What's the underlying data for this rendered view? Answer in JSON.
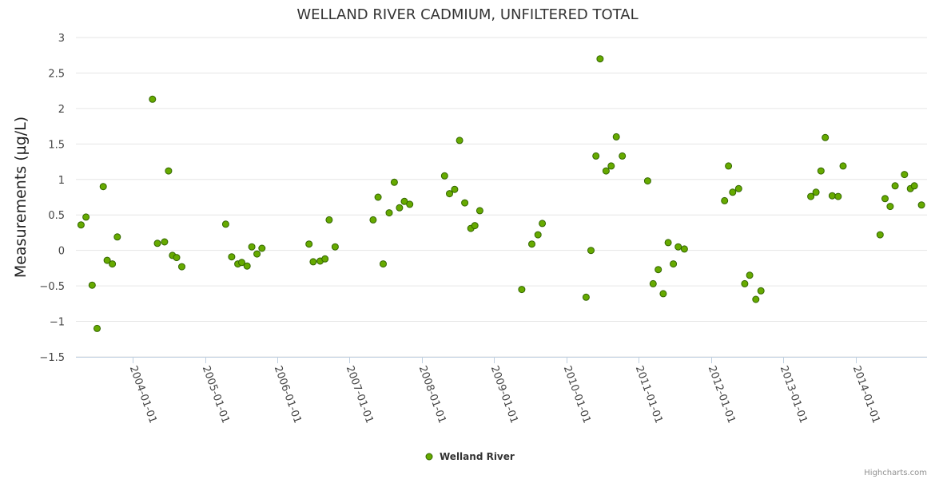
{
  "chart_data": {
    "type": "scatter",
    "title": "WELLAND RIVER CADMIUM, UNFILTERED TOTAL",
    "ylabel": "Measurements (µg/L)",
    "xlabel": "",
    "ylim": [
      -1.5,
      3
    ],
    "yticks": [
      3,
      2.5,
      2,
      1.5,
      1,
      0.5,
      0,
      -0.5,
      -1,
      -1.5
    ],
    "ytick_labels": [
      "3",
      "2.5",
      "2",
      "1.5",
      "1",
      "0.5",
      "0",
      "−0.5",
      "−1",
      "−1.5"
    ],
    "xlim": [
      "2003-03-20",
      "2014-12-28"
    ],
    "xticks": [
      "2004-01-01",
      "2005-01-01",
      "2006-01-01",
      "2007-01-01",
      "2008-01-01",
      "2009-01-01",
      "2010-01-01",
      "2011-01-01",
      "2012-01-01",
      "2013-01-01",
      "2014-01-01"
    ],
    "grid": true,
    "legend_position": "bottom-center",
    "series": [
      {
        "name": "Welland River",
        "color": "#66aa00",
        "points": [
          [
            "2003-04-15",
            0.36
          ],
          [
            "2003-05-10",
            0.47
          ],
          [
            "2003-06-10",
            -0.49
          ],
          [
            "2003-07-05",
            -1.1
          ],
          [
            "2003-08-05",
            0.9
          ],
          [
            "2003-08-25",
            -0.14
          ],
          [
            "2003-09-20",
            -0.19
          ],
          [
            "2003-10-15",
            0.19
          ],
          [
            "2004-04-10",
            2.13
          ],
          [
            "2004-05-05",
            0.1
          ],
          [
            "2004-06-10",
            0.12
          ],
          [
            "2004-06-30",
            1.12
          ],
          [
            "2004-07-20",
            -0.07
          ],
          [
            "2004-08-10",
            -0.1
          ],
          [
            "2004-09-05",
            -0.23
          ],
          [
            "2005-04-15",
            0.37
          ],
          [
            "2005-05-15",
            -0.09
          ],
          [
            "2005-06-15",
            -0.19
          ],
          [
            "2005-07-05",
            -0.17
          ],
          [
            "2005-08-01",
            -0.22
          ],
          [
            "2005-08-25",
            0.05
          ],
          [
            "2005-09-20",
            -0.05
          ],
          [
            "2005-10-15",
            0.03
          ],
          [
            "2006-06-10",
            0.09
          ],
          [
            "2006-07-01",
            -0.16
          ],
          [
            "2006-08-05",
            -0.15
          ],
          [
            "2006-08-30",
            -0.12
          ],
          [
            "2006-09-20",
            0.43
          ],
          [
            "2006-10-20",
            0.05
          ],
          [
            "2007-04-30",
            0.43
          ],
          [
            "2007-05-25",
            0.75
          ],
          [
            "2007-06-20",
            -0.19
          ],
          [
            "2007-07-20",
            0.53
          ],
          [
            "2007-08-15",
            0.96
          ],
          [
            "2007-09-10",
            0.6
          ],
          [
            "2007-10-05",
            0.69
          ],
          [
            "2007-11-01",
            0.65
          ],
          [
            "2008-04-25",
            1.05
          ],
          [
            "2008-05-20",
            0.8
          ],
          [
            "2008-06-15",
            0.86
          ],
          [
            "2008-07-10",
            1.55
          ],
          [
            "2008-08-05",
            0.67
          ],
          [
            "2008-09-05",
            0.31
          ],
          [
            "2008-09-25",
            0.35
          ],
          [
            "2008-10-20",
            0.56
          ],
          [
            "2009-05-20",
            -0.55
          ],
          [
            "2009-07-10",
            0.09
          ],
          [
            "2009-08-10",
            0.22
          ],
          [
            "2009-09-01",
            0.38
          ],
          [
            "2010-04-10",
            -0.66
          ],
          [
            "2010-05-05",
            0.0
          ],
          [
            "2010-05-30",
            1.33
          ],
          [
            "2010-06-20",
            2.7
          ],
          [
            "2010-07-20",
            1.12
          ],
          [
            "2010-08-15",
            1.19
          ],
          [
            "2010-09-10",
            1.6
          ],
          [
            "2010-10-10",
            1.33
          ],
          [
            "2011-02-15",
            0.98
          ],
          [
            "2011-03-15",
            -0.47
          ],
          [
            "2011-04-10",
            -0.27
          ],
          [
            "2011-05-05",
            -0.61
          ],
          [
            "2011-05-30",
            0.11
          ],
          [
            "2011-06-25",
            -0.19
          ],
          [
            "2011-07-20",
            0.05
          ],
          [
            "2011-08-20",
            0.02
          ],
          [
            "2012-03-10",
            0.7
          ],
          [
            "2012-03-30",
            1.19
          ],
          [
            "2012-04-20",
            0.82
          ],
          [
            "2012-05-20",
            0.87
          ],
          [
            "2012-06-20",
            -0.47
          ],
          [
            "2012-07-15",
            -0.35
          ],
          [
            "2012-08-15",
            -0.69
          ],
          [
            "2012-09-10",
            -0.57
          ],
          [
            "2013-05-20",
            0.76
          ],
          [
            "2013-06-15",
            0.82
          ],
          [
            "2013-07-10",
            1.12
          ],
          [
            "2013-08-01",
            1.59
          ],
          [
            "2013-09-05",
            0.77
          ],
          [
            "2013-10-05",
            0.76
          ],
          [
            "2013-10-30",
            1.19
          ],
          [
            "2014-05-05",
            0.22
          ],
          [
            "2014-05-30",
            0.73
          ],
          [
            "2014-06-25",
            0.62
          ],
          [
            "2014-07-20",
            0.91
          ],
          [
            "2014-09-05",
            1.07
          ],
          [
            "2014-10-05",
            0.87
          ],
          [
            "2014-10-25",
            0.91
          ],
          [
            "2014-11-30",
            0.64
          ]
        ]
      }
    ]
  },
  "credit": "Highcharts.com"
}
